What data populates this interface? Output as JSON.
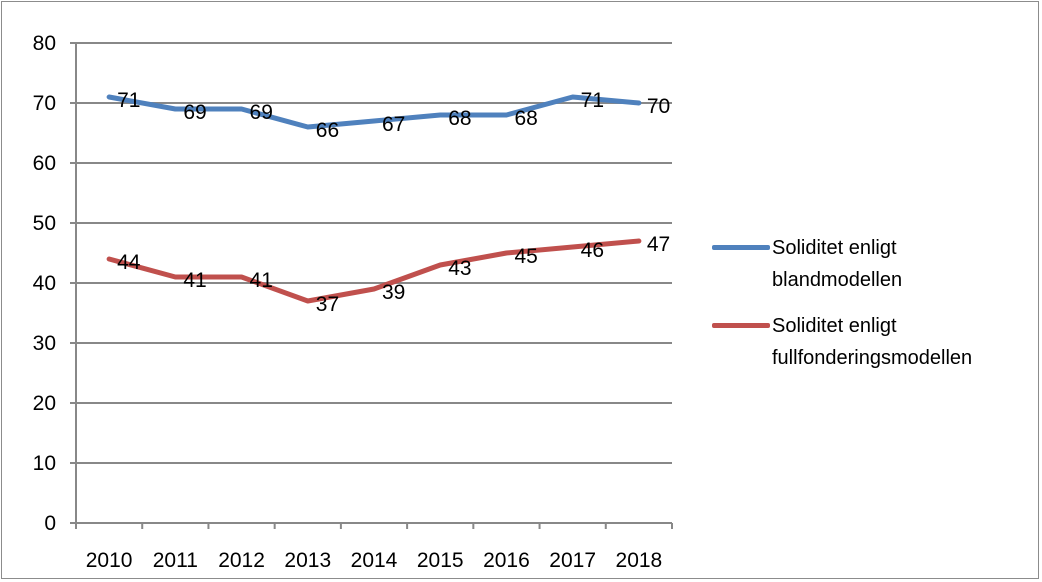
{
  "chart_data": {
    "type": "line",
    "categories": [
      "2010",
      "2011",
      "2012",
      "2013",
      "2014",
      "2015",
      "2016",
      "2017",
      "2018"
    ],
    "series": [
      {
        "name": "Soliditet enligt blandmodellen",
        "color": "#4f81bd",
        "values": [
          71,
          69,
          69,
          66,
          67,
          68,
          68,
          71,
          70
        ],
        "labels": [
          "71",
          "69",
          "69",
          "66",
          "67",
          "68",
          "68",
          "71",
          "70"
        ]
      },
      {
        "name": "Soliditet enligt fullfonderingsmodellen",
        "color": "#c0504d",
        "values": [
          44,
          41,
          41,
          37,
          39,
          43,
          45,
          46,
          47
        ],
        "labels": [
          "44",
          "41",
          "41",
          "37",
          "39",
          "43",
          "45",
          "46",
          "47"
        ]
      }
    ],
    "ylim": [
      0,
      80
    ],
    "yticks": [
      "0",
      "10",
      "20",
      "30",
      "40",
      "50",
      "60",
      "70",
      "80"
    ],
    "grid": true,
    "legend_position": "right"
  },
  "legend": {
    "items": [
      {
        "line1": "Soliditet enligt",
        "line2": "blandmodellen"
      },
      {
        "line1": "Soliditet enligt",
        "line2": "fullfonderingsmodellen"
      }
    ]
  }
}
